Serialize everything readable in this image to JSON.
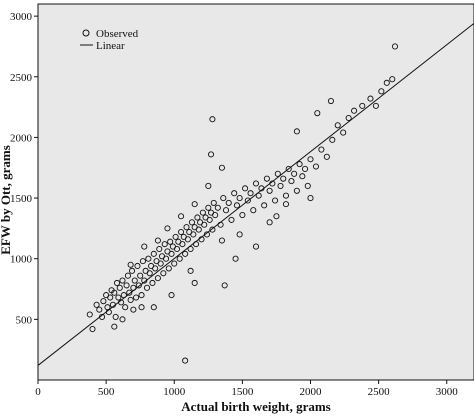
{
  "chart_data": {
    "type": "scatter",
    "title": "",
    "xlabel": "Actual birth weight, grams",
    "ylabel": "EFW by Ott, grams",
    "xlim": [
      0,
      3200
    ],
    "ylim": [
      0,
      3100
    ],
    "xticks": [
      0,
      500,
      1000,
      1500,
      2000,
      2500,
      3000
    ],
    "yticks": [
      500,
      1000,
      1500,
      2000,
      2500,
      3000
    ],
    "grid": false,
    "legend_position": "top-left",
    "background_color": "#e8e8e8",
    "series": [
      {
        "name": "Observed",
        "marker": "open-circle",
        "points": [
          [
            380,
            540
          ],
          [
            400,
            420
          ],
          [
            430,
            620
          ],
          [
            450,
            580
          ],
          [
            470,
            520
          ],
          [
            480,
            650
          ],
          [
            500,
            700
          ],
          [
            510,
            600
          ],
          [
            520,
            560
          ],
          [
            530,
            680
          ],
          [
            540,
            740
          ],
          [
            550,
            620
          ],
          [
            560,
            720
          ],
          [
            570,
            520
          ],
          [
            580,
            800
          ],
          [
            590,
            680
          ],
          [
            600,
            760
          ],
          [
            610,
            640
          ],
          [
            620,
            820
          ],
          [
            630,
            700
          ],
          [
            640,
            600
          ],
          [
            650,
            780
          ],
          [
            660,
            860
          ],
          [
            670,
            720
          ],
          [
            680,
            660
          ],
          [
            690,
            900
          ],
          [
            700,
            760
          ],
          [
            710,
            820
          ],
          [
            720,
            680
          ],
          [
            730,
            940
          ],
          [
            740,
            780
          ],
          [
            750,
            860
          ],
          [
            760,
            700
          ],
          [
            770,
            980
          ],
          [
            780,
            820
          ],
          [
            790,
            900
          ],
          [
            800,
            760
          ],
          [
            810,
            1000
          ],
          [
            820,
            880
          ],
          [
            830,
            940
          ],
          [
            840,
            800
          ],
          [
            850,
            1040
          ],
          [
            860,
            920
          ],
          [
            870,
            980
          ],
          [
            880,
            840
          ],
          [
            890,
            1080
          ],
          [
            900,
            960
          ],
          [
            910,
            1020
          ],
          [
            920,
            880
          ],
          [
            930,
            1120
          ],
          [
            940,
            1000
          ],
          [
            950,
            1060
          ],
          [
            960,
            920
          ],
          [
            970,
            1140
          ],
          [
            980,
            1040
          ],
          [
            990,
            1100
          ],
          [
            1000,
            960
          ],
          [
            1010,
            1180
          ],
          [
            1020,
            1080
          ],
          [
            1030,
            1140
          ],
          [
            1040,
            1000
          ],
          [
            1050,
            1220
          ],
          [
            1060,
            1120
          ],
          [
            1070,
            1180
          ],
          [
            1080,
            1040
          ],
          [
            1090,
            1260
          ],
          [
            1100,
            1160
          ],
          [
            1110,
            1220
          ],
          [
            1120,
            1080
          ],
          [
            1130,
            1300
          ],
          [
            1140,
            1200
          ],
          [
            1150,
            1260
          ],
          [
            1160,
            1120
          ],
          [
            1170,
            1340
          ],
          [
            1180,
            1240
          ],
          [
            1190,
            1300
          ],
          [
            1200,
            1160
          ],
          [
            1210,
            1380
          ],
          [
            1220,
            1280
          ],
          [
            1230,
            1340
          ],
          [
            1240,
            1200
          ],
          [
            1250,
            1420
          ],
          [
            1260,
            1320
          ],
          [
            1270,
            1380
          ],
          [
            1280,
            1240
          ],
          [
            1290,
            1460
          ],
          [
            1300,
            1360
          ],
          [
            1320,
            1420
          ],
          [
            1340,
            1280
          ],
          [
            1360,
            1500
          ],
          [
            1380,
            1400
          ],
          [
            1400,
            1460
          ],
          [
            1420,
            1320
          ],
          [
            1440,
            1540
          ],
          [
            1460,
            1440
          ],
          [
            1480,
            1500
          ],
          [
            1500,
            1360
          ],
          [
            1520,
            1580
          ],
          [
            1540,
            1480
          ],
          [
            1560,
            1540
          ],
          [
            1580,
            1400
          ],
          [
            1600,
            1620
          ],
          [
            1620,
            1520
          ],
          [
            1640,
            1580
          ],
          [
            1660,
            1440
          ],
          [
            1680,
            1660
          ],
          [
            1700,
            1560
          ],
          [
            1720,
            1620
          ],
          [
            1740,
            1480
          ],
          [
            1760,
            1700
          ],
          [
            1780,
            1600
          ],
          [
            1800,
            1660
          ],
          [
            1820,
            1520
          ],
          [
            1840,
            1740
          ],
          [
            1860,
            1640
          ],
          [
            1880,
            1700
          ],
          [
            1900,
            1560
          ],
          [
            1920,
            1780
          ],
          [
            1940,
            1680
          ],
          [
            1960,
            1740
          ],
          [
            1980,
            1600
          ],
          [
            2000,
            1820
          ],
          [
            2040,
            1760
          ],
          [
            2080,
            1900
          ],
          [
            2120,
            1840
          ],
          [
            2160,
            1980
          ],
          [
            2200,
            2100
          ],
          [
            2240,
            2040
          ],
          [
            2280,
            2160
          ],
          [
            2320,
            2220
          ],
          [
            2380,
            2260
          ],
          [
            2440,
            2320
          ],
          [
            2480,
            2260
          ],
          [
            2520,
            2380
          ],
          [
            2560,
            2450
          ],
          [
            2600,
            2480
          ],
          [
            2620,
            2750
          ],
          [
            1280,
            2150
          ],
          [
            1270,
            1860
          ],
          [
            1080,
            160
          ],
          [
            1370,
            780
          ],
          [
            700,
            580
          ],
          [
            1150,
            800
          ],
          [
            1450,
            1000
          ],
          [
            1600,
            1100
          ],
          [
            1750,
            1350
          ],
          [
            1900,
            2050
          ],
          [
            2150,
            2300
          ],
          [
            2050,
            2200
          ],
          [
            850,
            600
          ],
          [
            980,
            700
          ],
          [
            1120,
            900
          ],
          [
            620,
            500
          ],
          [
            560,
            440
          ],
          [
            760,
            600
          ],
          [
            1350,
            1150
          ],
          [
            1480,
            1200
          ],
          [
            1700,
            1300
          ],
          [
            1820,
            1450
          ],
          [
            2000,
            1500
          ],
          [
            1250,
            1600
          ],
          [
            1350,
            1750
          ],
          [
            1150,
            1450
          ],
          [
            1050,
            1350
          ],
          [
            950,
            1250
          ],
          [
            780,
            1100
          ],
          [
            680,
            950
          ],
          [
            880,
            1150
          ]
        ]
      },
      {
        "name": "Linear",
        "line": {
          "x": [
            0,
            3200
          ],
          "y": [
            120,
            2940
          ]
        }
      }
    ]
  }
}
